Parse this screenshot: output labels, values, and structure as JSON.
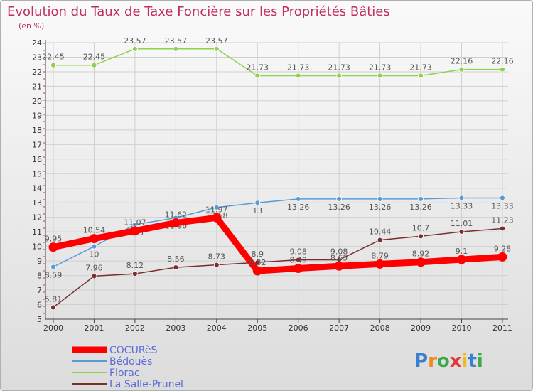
{
  "chart_data": {
    "type": "line",
    "title": "Evolution du Taux de Taxe Foncière sur les Propriétés Bâties",
    "subtitle": "(en %)",
    "x": [
      "2000",
      "2001",
      "2002",
      "2003",
      "2004",
      "2005",
      "2006",
      "2007",
      "2008",
      "2009",
      "2010",
      "2011"
    ],
    "ylim": [
      5,
      24
    ],
    "yticks": [
      "5",
      "6",
      "7",
      "8",
      "9",
      "10",
      "11",
      "12",
      "13",
      "14",
      "15",
      "16",
      "17",
      "18",
      "19",
      "20",
      "21",
      "22",
      "23",
      "24"
    ],
    "grid": true,
    "legend_position": "bottom-left",
    "series": [
      {
        "name": "COCURèS",
        "color": "#ff0000",
        "labels_below": false,
        "values": [
          9.95,
          10.54,
          11.07,
          11.62,
          11.97,
          8.32,
          8.49,
          8.65,
          8.79,
          8.92,
          9.1,
          9.28
        ],
        "labels": [
          "9.95",
          "10.54",
          "11.07",
          "11.62",
          "11.97",
          "8.32",
          "8.49",
          "8.65",
          "8.79",
          "8.92",
          "9.1",
          "9.28"
        ]
      },
      {
        "name": "Bédouès",
        "color": "#5b9bd5",
        "labels_below": true,
        "values": [
          8.59,
          10.0,
          11.5,
          11.96,
          12.68,
          13.0,
          13.26,
          13.26,
          13.26,
          13.26,
          13.33,
          13.33
        ],
        "labels": [
          "8.59",
          "10",
          "11.5",
          "11.96",
          "12.68",
          "13",
          "13.26",
          "13.26",
          "13.26",
          "13.26",
          "13.33",
          "13.33"
        ]
      },
      {
        "name": "Florac",
        "color": "#8fd14f",
        "labels_below": false,
        "values": [
          22.45,
          22.45,
          23.57,
          23.57,
          23.57,
          21.73,
          21.73,
          21.73,
          21.73,
          21.73,
          22.16,
          22.16
        ],
        "labels": [
          "22.45",
          "22.45",
          "23.57",
          "23.57",
          "23.57",
          "21.73",
          "21.73",
          "21.73",
          "21.73",
          "21.73",
          "22.16",
          "22.16"
        ]
      },
      {
        "name": "La Salle-Prunet",
        "color": "#7a2e2e",
        "labels_below": false,
        "values": [
          5.81,
          7.96,
          8.12,
          8.56,
          8.73,
          8.9,
          9.08,
          9.08,
          10.44,
          10.7,
          11.01,
          11.23
        ],
        "labels": [
          "5.81",
          "7.96",
          "8.12",
          "8.56",
          "8.73",
          "8.9",
          "9.08",
          "9.08",
          "10.44",
          "10.7",
          "11.01",
          "11.23"
        ]
      }
    ]
  },
  "logo": {
    "text": "Proxiti"
  }
}
